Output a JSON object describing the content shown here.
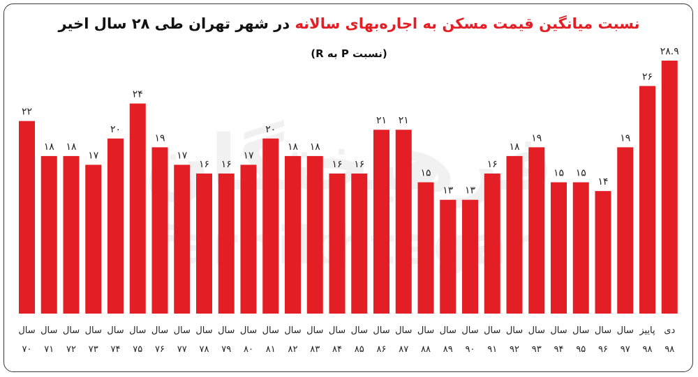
{
  "title_main_red": "نسبت میانگین قیمت مسکن به اجاره‌بهای سالانه",
  "title_main_rest": " در شهر تهران طی ۲۸ سال اخیر",
  "subtitle": "(نسبت P به R)",
  "watermark": {
    "text_fa": "فرهیختگان",
    "text_en": "farhikhtegan"
  },
  "colors": {
    "bar": "#e31e24",
    "text": "#111111"
  },
  "chart_data": {
    "type": "bar",
    "title": "نسبت میانگین قیمت مسکن به اجاره‌بهای سالانه در شهر تهران طی ۲۸ سال اخیر",
    "subtitle": "(نسبت P به R)",
    "xlabel": "",
    "ylabel": "",
    "ylim": [
      0,
      29.5
    ],
    "grid": false,
    "legend": "none",
    "categories": [
      [
        "سال",
        "۷۰"
      ],
      [
        "سال",
        "۷۱"
      ],
      [
        "سال",
        "۷۲"
      ],
      [
        "سال",
        "۷۳"
      ],
      [
        "سال",
        "۷۴"
      ],
      [
        "سال",
        "۷۵"
      ],
      [
        "سال",
        "۷۶"
      ],
      [
        "سال",
        "۷۷"
      ],
      [
        "سال",
        "۷۸"
      ],
      [
        "سال",
        "۷۹"
      ],
      [
        "سال",
        "۸۰"
      ],
      [
        "سال",
        "۸۱"
      ],
      [
        "سال",
        "۸۲"
      ],
      [
        "سال",
        "۸۳"
      ],
      [
        "سال",
        "۸۴"
      ],
      [
        "سال",
        "۸۵"
      ],
      [
        "سال",
        "۸۶"
      ],
      [
        "سال",
        "۸۷"
      ],
      [
        "سال",
        "۸۸"
      ],
      [
        "سال",
        "۸۹"
      ],
      [
        "سال",
        "۹۰"
      ],
      [
        "سال",
        "۹۱"
      ],
      [
        "سال",
        "۹۲"
      ],
      [
        "سال",
        "۹۳"
      ],
      [
        "سال",
        "۹۴"
      ],
      [
        "سال",
        "۹۵"
      ],
      [
        "سال",
        "۹۶"
      ],
      [
        "سال",
        "۹۷"
      ],
      [
        "پاییز",
        "۹۸"
      ],
      [
        "دی",
        "۹۸"
      ]
    ],
    "values": [
      22,
      18,
      18,
      17,
      20,
      24,
      19,
      17,
      16,
      16,
      17,
      20,
      18,
      18,
      16,
      16,
      21,
      21,
      15,
      13,
      13,
      16,
      18,
      19,
      15,
      15,
      14,
      19,
      26,
      28.9
    ],
    "value_labels": [
      "۲۲",
      "۱۸",
      "۱۸",
      "۱۷",
      "۲۰",
      "۲۴",
      "۱۹",
      "۱۷",
      "۱۶",
      "۱۶",
      "۱۷",
      "۲۰",
      "۱۸",
      "۱۸",
      "۱۶",
      "۱۶",
      "۲۱",
      "۲۱",
      "۱۵",
      "۱۳",
      "۱۳",
      "۱۶",
      "۱۸",
      "۱۹",
      "۱۵",
      "۱۵",
      "۱۴",
      "۱۹",
      "۲۶",
      "۲۸.۹"
    ]
  }
}
